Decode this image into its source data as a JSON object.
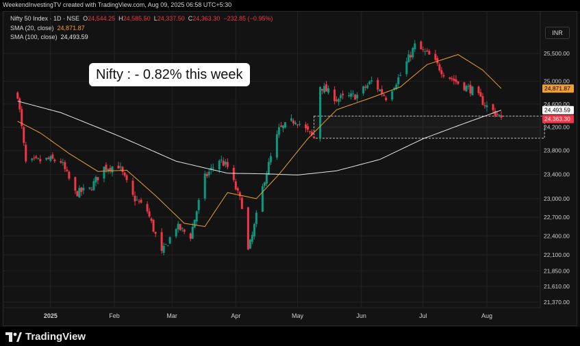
{
  "header": {
    "credit": "WeekendInvestingTV created with TradingView.com, Aug 09, 2025 06:58 UTC+5:30"
  },
  "legend": {
    "symbol": "Nifty 50 Index · 1D · NSE",
    "open_key": "O",
    "open": "24,544.25",
    "high_key": "H",
    "high": "24,585.50",
    "low_key": "L",
    "low": "24,337.50",
    "close_key": "C",
    "close": "24,363.30",
    "change": "−232.85 (−0.95%)",
    "sma20_label": "SMA (20, close)",
    "sma20_value": "24,871.87",
    "sma100_label": "SMA (100, close)",
    "sma100_value": "24,493.59"
  },
  "currency_button": "INR",
  "callout": "Nifty : - 0.82% this week",
  "branding": "TradingView",
  "colors": {
    "up": "#089981",
    "down": "#f23645",
    "sma20": "#f0a030",
    "sma100": "#e8e8e8",
    "background": "#131313"
  },
  "chart_data": {
    "type": "candlestick",
    "y_ticks": [
      25500,
      25000,
      24600,
      24200,
      23800,
      23400,
      23000,
      22700,
      22400,
      22100,
      21850,
      21610,
      21370
    ],
    "y_tick_labels": [
      "25,500.00",
      "25,000.00",
      "24,600.00",
      "24,200.00",
      "23,800.00",
      "23,400.00",
      "23,000.00",
      "22,700.00",
      "22,400.00",
      "22,100.00",
      "21,850.00",
      "21,610.00",
      "21,370.00"
    ],
    "y_scale": "log",
    "x_ticks": [
      {
        "label": "2025",
        "date": "2025-01-01",
        "bold": true
      },
      {
        "label": "Feb",
        "date": "2025-02-01",
        "bold": false
      },
      {
        "label": "Mar",
        "date": "2025-03-01",
        "bold": false
      },
      {
        "label": "Apr",
        "date": "2025-04-01",
        "bold": false
      },
      {
        "label": "May",
        "date": "2025-05-01",
        "bold": false
      },
      {
        "label": "Jun",
        "date": "2025-06-01",
        "bold": false
      },
      {
        "label": "Jul",
        "date": "2025-07-01",
        "bold": false
      },
      {
        "label": "Aug",
        "date": "2025-08-01",
        "bold": false
      }
    ],
    "price_labels": [
      {
        "name": "sma20",
        "value": 24871.87,
        "text": "24,871.87",
        "bg": "#f0a030",
        "fg": "#000000"
      },
      {
        "name": "sma100",
        "value": 24493.59,
        "text": "24,493.59",
        "bg": "#ffffff",
        "fg": "#000000"
      },
      {
        "name": "last",
        "value": 24363.3,
        "text": "24,363.30",
        "bg": "#f23645",
        "fg": "#ffffff"
      }
    ],
    "zone": {
      "from_date": "2025-05-09",
      "to_date": "2025-08-29",
      "low": 24010,
      "high": 24390
    },
    "close_anchors": [
      [
        "2024-12-16",
        24770
      ],
      [
        "2024-12-20",
        23590
      ],
      [
        "2024-12-31",
        23650
      ],
      [
        "2025-01-06",
        23620
      ],
      [
        "2025-01-13",
        23090
      ],
      [
        "2025-01-20",
        23150
      ],
      [
        "2025-01-27",
        23510
      ],
      [
        "2025-02-03",
        23550
      ],
      [
        "2025-02-10",
        23030
      ],
      [
        "2025-02-17",
        22800
      ],
      [
        "2025-02-24",
        22120
      ],
      [
        "2025-03-03",
        22550
      ],
      [
        "2025-03-10",
        22400
      ],
      [
        "2025-03-17",
        23350
      ],
      [
        "2025-03-24",
        23650
      ],
      [
        "2025-03-28",
        23520
      ],
      [
        "2025-04-04",
        22900
      ],
      [
        "2025-04-07",
        22160
      ],
      [
        "2025-04-09",
        22400
      ],
      [
        "2025-04-15",
        23330
      ],
      [
        "2025-04-22",
        24150
      ],
      [
        "2025-04-30",
        24330
      ],
      [
        "2025-05-09",
        24010
      ],
      [
        "2025-05-12",
        24920
      ],
      [
        "2025-05-20",
        24690
      ],
      [
        "2025-05-30",
        24750
      ],
      [
        "2025-06-06",
        25000
      ],
      [
        "2025-06-13",
        24720
      ],
      [
        "2025-06-20",
        25110
      ],
      [
        "2025-06-27",
        25640
      ],
      [
        "2025-07-04",
        25460
      ],
      [
        "2025-07-11",
        25150
      ],
      [
        "2025-07-18",
        24970
      ],
      [
        "2025-07-25",
        24840
      ],
      [
        "2025-08-01",
        24560
      ],
      [
        "2025-08-08",
        24363
      ]
    ],
    "sma20_anchors": [
      [
        "2024-12-16",
        24300
      ],
      [
        "2024-12-27",
        24100
      ],
      [
        "2025-01-10",
        23750
      ],
      [
        "2025-01-24",
        23450
      ],
      [
        "2025-02-07",
        23470
      ],
      [
        "2025-02-21",
        23050
      ],
      [
        "2025-03-07",
        22600
      ],
      [
        "2025-03-17",
        22550
      ],
      [
        "2025-03-28",
        23100
      ],
      [
        "2025-04-11",
        23000
      ],
      [
        "2025-04-22",
        23400
      ],
      [
        "2025-05-06",
        24000
      ],
      [
        "2025-05-20",
        24500
      ],
      [
        "2025-06-05",
        24700
      ],
      [
        "2025-06-20",
        24900
      ],
      [
        "2025-07-03",
        25300
      ],
      [
        "2025-07-18",
        25480
      ],
      [
        "2025-07-30",
        25200
      ],
      [
        "2025-08-08",
        24871.87
      ]
    ],
    "sma100_anchors": [
      [
        "2024-12-16",
        24650
      ],
      [
        "2025-01-06",
        24450
      ],
      [
        "2025-02-03",
        24050
      ],
      [
        "2025-03-03",
        23620
      ],
      [
        "2025-03-28",
        23420
      ],
      [
        "2025-04-15",
        23410
      ],
      [
        "2025-05-01",
        23390
      ],
      [
        "2025-05-20",
        23460
      ],
      [
        "2025-06-10",
        23650
      ],
      [
        "2025-07-01",
        24000
      ],
      [
        "2025-07-20",
        24250
      ],
      [
        "2025-08-08",
        24493.59
      ]
    ]
  }
}
